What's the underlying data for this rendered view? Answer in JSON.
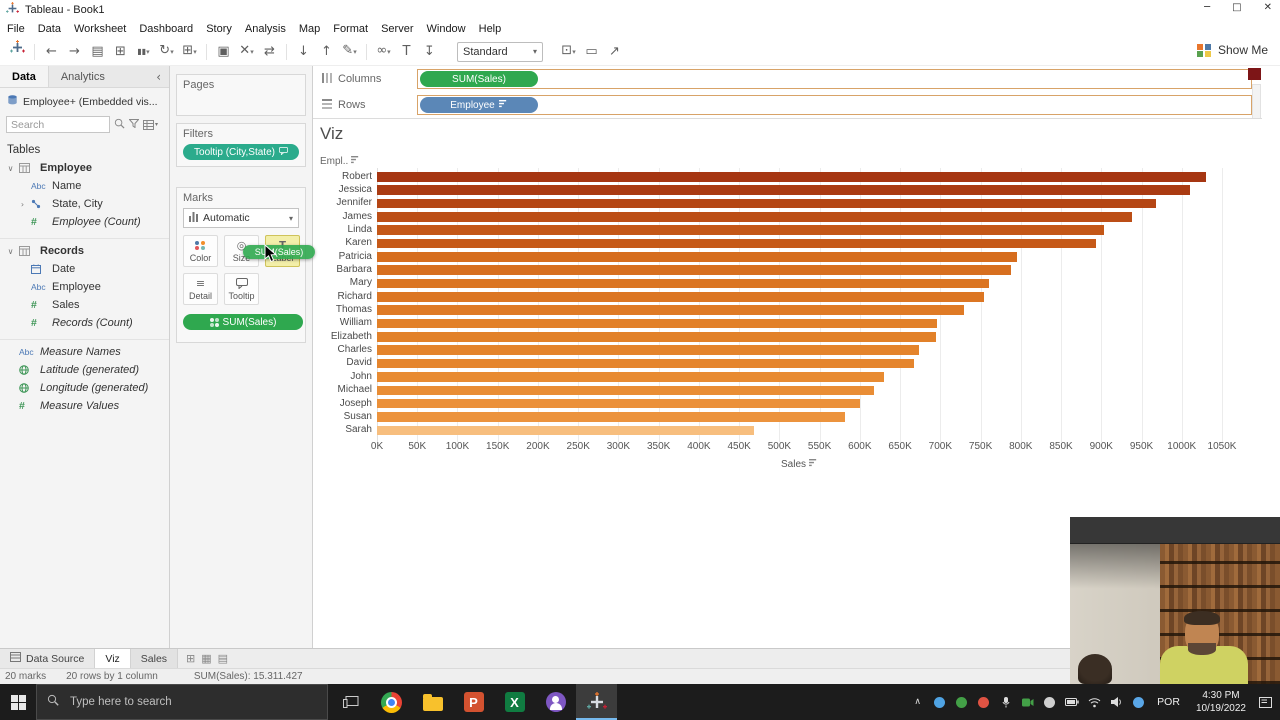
{
  "window": {
    "title": "Tableau - Book1"
  },
  "menu": {
    "items": [
      "File",
      "Data",
      "Worksheet",
      "Dashboard",
      "Story",
      "Analysis",
      "Map",
      "Format",
      "Server",
      "Window",
      "Help"
    ]
  },
  "toolbar": {
    "icons": [
      "tableau-home",
      "undo",
      "redo",
      "save",
      "add-data",
      "pause-updates",
      "refresh",
      "new-worksheet",
      "duplicate",
      "clear-sheet",
      "swap-axes",
      "sort-ascending",
      "sort-descending",
      "highlight",
      "group-members",
      "show-mark-labels",
      "fix-axes"
    ],
    "standard_label": "Standard",
    "right_icons": [
      "fit",
      "presentation-mode",
      "share"
    ],
    "show_me_label": "Show Me"
  },
  "sidebar": {
    "data_tab": "Data",
    "analytics_tab": "Analytics",
    "connection": "Employee+ (Embedded vis...",
    "search_placeholder": "Search",
    "tables_label": "Tables",
    "fields": [
      {
        "label": "Employee",
        "icon": "table",
        "indent": 0,
        "style": "bold",
        "expander": "open"
      },
      {
        "label": "Name",
        "icon": "abc",
        "indent": 1
      },
      {
        "label": "State, City",
        "icon": "hierarchy",
        "indent": 1,
        "expander": "closed"
      },
      {
        "label": "Employee (Count)",
        "icon": "hash",
        "indent": 1,
        "style": "italic"
      },
      {
        "label": "Records",
        "icon": "table",
        "indent": 0,
        "style": "bold",
        "expander": "open",
        "gap_before": true
      },
      {
        "label": "Date",
        "icon": "calendar",
        "indent": 1
      },
      {
        "label": "Employee",
        "icon": "abc",
        "indent": 1
      },
      {
        "label": "Sales",
        "icon": "hash",
        "indent": 1
      },
      {
        "label": "Records (Count)",
        "icon": "hash",
        "indent": 1,
        "style": "italic"
      },
      {
        "label": "Measure Names",
        "icon": "abc",
        "indent": 0,
        "style": "italic",
        "gap_before": true
      },
      {
        "label": "Latitude (generated)",
        "icon": "globe",
        "indent": 0,
        "style": "italic"
      },
      {
        "label": "Longitude (generated)",
        "icon": "globe",
        "indent": 0,
        "style": "italic"
      },
      {
        "label": "Measure Values",
        "icon": "hash",
        "indent": 0,
        "style": "italic"
      }
    ]
  },
  "cards": {
    "pages_label": "Pages",
    "filters_label": "Filters",
    "filter_pill": "Tooltip (City,State)",
    "marks_label": "Marks",
    "mark_type": "Automatic",
    "mark_buttons": [
      {
        "label": "Color",
        "icon": "color"
      },
      {
        "label": "Size",
        "icon": "size"
      },
      {
        "label": "Label",
        "icon": "label",
        "highlight": true
      },
      {
        "label": "Detail",
        "icon": "detail"
      },
      {
        "label": "Tooltip",
        "icon": "tooltip"
      }
    ],
    "color_pill": "SUM(Sales)",
    "drag_pill": "SUM(Sales)"
  },
  "shelves": {
    "columns_label": "Columns",
    "columns_pill": "SUM(Sales)",
    "rows_label": "Rows",
    "rows_pill": "Employee"
  },
  "sheet": {
    "title": "Viz"
  },
  "chart_data": {
    "type": "bar",
    "orientation": "horizontal",
    "title": "Viz",
    "column_header": "Empl..",
    "xlabel": "Sales",
    "x_unit": "K",
    "xlim": [
      0,
      1050
    ],
    "x_tick_step": 50,
    "x_ticks": [
      "0K",
      "50K",
      "100K",
      "150K",
      "200K",
      "250K",
      "300K",
      "350K",
      "400K",
      "450K",
      "500K",
      "550K",
      "600K",
      "650K",
      "700K",
      "750K",
      "800K",
      "850K",
      "900K",
      "950K",
      "1000K",
      "1050K"
    ],
    "sorted": "descending",
    "grid": true,
    "categories": [
      "Robert",
      "Jessica",
      "Jennifer",
      "James",
      "Linda",
      "Karen",
      "Patricia",
      "Barbara",
      "Mary",
      "Richard",
      "Thomas",
      "William",
      "Elizabeth",
      "Charles",
      "David",
      "John",
      "Michael",
      "Joseph",
      "Susan",
      "Sarah"
    ],
    "values_k": [
      1030,
      1010,
      968,
      938,
      903,
      893,
      795,
      788,
      760,
      754,
      730,
      696,
      695,
      673,
      667,
      630,
      618,
      600,
      582,
      468
    ],
    "bar_colors": [
      "#A63612",
      "#AA3B12",
      "#B54614",
      "#BC4E16",
      "#C45717",
      "#C65918",
      "#D66D1E",
      "#D76F1F",
      "#DB7522",
      "#DC7623",
      "#DF7A25",
      "#E28028",
      "#E28129",
      "#E4842C",
      "#E5852D",
      "#E88B32",
      "#E98D35",
      "#EB9039",
      "#EC933D",
      "#F7BE7E"
    ]
  },
  "sheet_tabs": {
    "items": [
      "Data Source",
      "Viz",
      "Sales"
    ],
    "active": "Viz",
    "new_icons": [
      "new-worksheet",
      "new-dashboard",
      "new-story"
    ]
  },
  "status": {
    "marks": "20 marks",
    "dimensions": "20 rows by 1 column",
    "aggregate": "SUM(Sales): 15.311.427"
  },
  "taskbar": {
    "search_placeholder": "Type here to search",
    "apps": [
      "task-view",
      "chrome",
      "folder",
      "powerpoint",
      "excel",
      "people",
      "tableau"
    ],
    "active_app": "tableau",
    "tray": [
      "hidden-icons",
      "tray-app-1",
      "tray-app-2",
      "tray-app-3",
      "microphone",
      "camera",
      "tray-app-4",
      "battery",
      "wifi",
      "volume",
      "tray-app-5"
    ],
    "language": "POR",
    "time": "4:30 PM",
    "date": "10/19/2022"
  },
  "colors": {
    "pill_green": "#2FA84F",
    "pill_blue": "#5B87B7",
    "pill_teal": "#2BAB8C",
    "accent_orange": "#E8762D"
  }
}
